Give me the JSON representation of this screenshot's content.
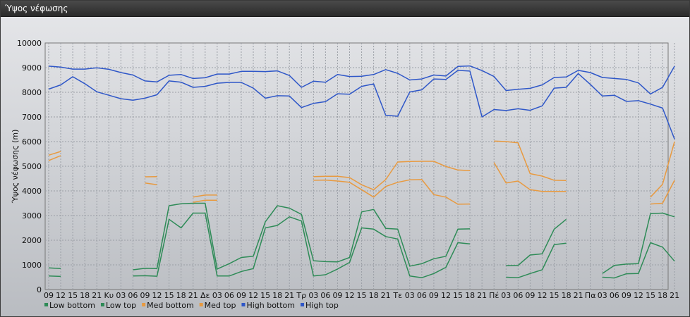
{
  "title": "Ύψος νέφωσης",
  "chart_data": {
    "type": "line",
    "ylabel": "Ύψος νέφωσης (m)",
    "ylim": [
      0,
      10000
    ],
    "yticks": [
      0,
      1000,
      2000,
      3000,
      4000,
      5000,
      6000,
      7000,
      8000,
      9000,
      10000
    ],
    "grid": true,
    "legend_position": "bottom-left",
    "x": [
      "09",
      "12",
      "15",
      "18",
      "21",
      "Κυ",
      "03",
      "06",
      "09",
      "12",
      "15",
      "18",
      "21",
      "Δε",
      "03",
      "06",
      "09",
      "12",
      "15",
      "18",
      "21",
      "Τρ",
      "03",
      "06",
      "09",
      "12",
      "15",
      "18",
      "21",
      "Τε",
      "03",
      "06",
      "09",
      "12",
      "15",
      "18",
      "21",
      "Πέ",
      "03",
      "06",
      "09",
      "12",
      "15",
      "18",
      "21",
      "Πα",
      "03",
      "06",
      "09",
      "12",
      "15",
      "18",
      "21"
    ],
    "series": [
      {
        "name": "Low bottom",
        "color": "#2e8b57",
        "values": [
          550,
          530,
          null,
          null,
          null,
          null,
          null,
          550,
          560,
          540,
          2850,
          2500,
          3100,
          3100,
          550,
          550,
          730,
          850,
          2500,
          2600,
          2950,
          2780,
          550,
          600,
          830,
          1100,
          2500,
          2450,
          2150,
          2050,
          550,
          480,
          650,
          900,
          1900,
          1850,
          null,
          null,
          500,
          480,
          650,
          800,
          1820,
          1880,
          null,
          null,
          500,
          470,
          640,
          650,
          1900,
          1720,
          1150
        ]
      },
      {
        "name": "Low top",
        "color": "#2e8b57",
        "values": [
          880,
          850,
          null,
          null,
          null,
          null,
          null,
          800,
          860,
          850,
          3400,
          3480,
          3500,
          3500,
          830,
          1050,
          1300,
          1350,
          2750,
          3400,
          3300,
          3050,
          1170,
          1130,
          1120,
          1300,
          3150,
          3250,
          2480,
          2450,
          950,
          1050,
          1250,
          1350,
          2450,
          2460,
          null,
          null,
          970,
          980,
          1400,
          1450,
          2450,
          2850,
          null,
          null,
          650,
          980,
          1030,
          1050,
          3080,
          3100,
          2950
        ]
      },
      {
        "name": "Med bottom",
        "color": "#e89a40",
        "values": [
          5230,
          5430,
          null,
          null,
          null,
          null,
          null,
          null,
          4320,
          4250,
          null,
          null,
          3540,
          3620,
          3620,
          null,
          null,
          null,
          null,
          null,
          null,
          null,
          4430,
          4440,
          4400,
          4350,
          4050,
          3750,
          4180,
          4350,
          4450,
          4460,
          3850,
          3750,
          3460,
          3470,
          null,
          5150,
          4320,
          4400,
          4050,
          3980,
          3980,
          3980,
          null,
          null,
          null,
          null,
          null,
          null,
          3470,
          3500,
          4430
        ]
      },
      {
        "name": "Med top",
        "color": "#e89a40",
        "values": [
          5450,
          5600,
          null,
          null,
          null,
          null,
          null,
          null,
          4570,
          4580,
          null,
          null,
          3750,
          3830,
          3830,
          null,
          null,
          null,
          null,
          null,
          null,
          null,
          4580,
          4590,
          4590,
          4540,
          4250,
          4050,
          4460,
          5170,
          5190,
          5200,
          5200,
          4990,
          4850,
          4820,
          null,
          6020,
          6000,
          5950,
          4700,
          4600,
          4430,
          4420,
          null,
          null,
          null,
          null,
          null,
          null,
          3750,
          4270,
          6000
        ]
      },
      {
        "name": "High bottom",
        "color": "#2f57c8",
        "values": [
          8130,
          8300,
          8630,
          8350,
          8020,
          7880,
          7740,
          7680,
          7760,
          7900,
          8460,
          8410,
          8200,
          8240,
          8370,
          8400,
          8400,
          8170,
          7760,
          7860,
          7850,
          7380,
          7550,
          7620,
          7940,
          7920,
          8240,
          8340,
          7070,
          7030,
          8010,
          8100,
          8540,
          8520,
          8890,
          8860,
          7000,
          7300,
          7260,
          7330,
          7270,
          7450,
          8170,
          8200,
          8760,
          8320,
          7850,
          7880,
          7630,
          7660,
          7520,
          7360,
          6100
        ]
      },
      {
        "name": "High top",
        "color": "#2f57c8",
        "values": [
          9060,
          9020,
          8940,
          8940,
          8990,
          8930,
          8800,
          8700,
          8460,
          8420,
          8690,
          8720,
          8560,
          8590,
          8740,
          8740,
          8850,
          8850,
          8840,
          8870,
          8680,
          8200,
          8450,
          8410,
          8720,
          8640,
          8650,
          8720,
          8920,
          8770,
          8500,
          8540,
          8700,
          8660,
          9050,
          9070,
          8880,
          8640,
          8070,
          8120,
          8160,
          8300,
          8600,
          8620,
          8890,
          8800,
          8600,
          8560,
          8520,
          8380,
          7930,
          8200,
          9060
        ]
      }
    ]
  }
}
